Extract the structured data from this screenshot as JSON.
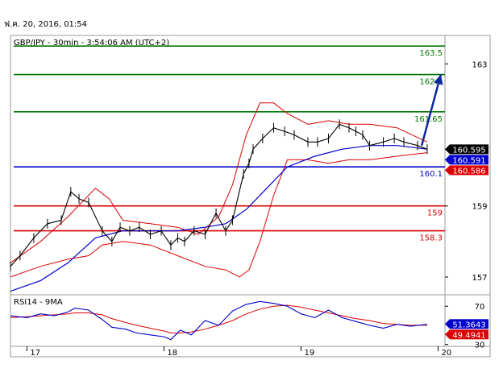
{
  "header": {
    "timestamp": "ฟ.ค. 20, 2016, 01:54"
  },
  "chart_data": {
    "type": "line",
    "title": "GBP/JPY - 30min - 3:54:06 AM (UTC+2)",
    "ylim": [
      156.5,
      163.8
    ],
    "yticks": [
      157,
      159,
      163
    ],
    "ytick_labels": [
      "157",
      "159",
      "163"
    ],
    "xtick_labels": [
      "17",
      "18",
      "19",
      "20"
    ],
    "xtick_positions": [
      0,
      1,
      2,
      3
    ],
    "x_range": [
      -0.12,
      3.05
    ],
    "colors": {
      "price": "#000000",
      "ma": "#0000cc",
      "bands": "#dd0000",
      "resistance": "#007700",
      "support_blue": "#0000cc",
      "support_red": "#dd0000",
      "arrow": "#0a2a9e",
      "rsi": "#0000cc",
      "rsi_ma": "#dd0000"
    },
    "levels": [
      {
        "value": 163.5,
        "label": "163.5",
        "color": "#007700"
      },
      {
        "value": 162.7,
        "label": "162.7",
        "color": "#007700"
      },
      {
        "value": 161.65,
        "label": "161.65",
        "color": "#007700"
      },
      {
        "value": 160.1,
        "label": "160.1",
        "color": "#0000cc"
      },
      {
        "value": 159,
        "label": "159",
        "color": "#dd0000"
      },
      {
        "value": 158.3,
        "label": "158.3",
        "color": "#dd0000"
      }
    ],
    "price_tags": [
      {
        "value": 160.595,
        "label": "160.595",
        "bg": "#000000"
      },
      {
        "value": 160.591,
        "label": "160.591",
        "bg": "#0000cc"
      },
      {
        "value": 160.586,
        "label": "160.586",
        "bg": "#dd0000"
      }
    ],
    "arrow": {
      "from": [
        2.88,
        160.7
      ],
      "to": [
        3.02,
        162.7
      ]
    },
    "series": [
      {
        "role": "price",
        "x": [
          -0.12,
          -0.05,
          0.05,
          0.15,
          0.25,
          0.32,
          0.38,
          0.45,
          0.55,
          0.62,
          0.68,
          0.75,
          0.82,
          0.9,
          0.98,
          1.05,
          1.1,
          1.15,
          1.22,
          1.3,
          1.38,
          1.45,
          1.5,
          1.58,
          1.62,
          1.65,
          1.72,
          1.8,
          1.88,
          1.95,
          2.05,
          2.12,
          2.2,
          2.28,
          2.35,
          2.4,
          2.45,
          2.5,
          2.6,
          2.68,
          2.75,
          2.85,
          2.92
        ],
        "y": [
          157.3,
          157.6,
          158.1,
          158.5,
          158.6,
          159.4,
          159.2,
          159.1,
          158.3,
          158.0,
          158.4,
          158.3,
          158.4,
          158.2,
          158.3,
          157.9,
          158.1,
          158.0,
          158.3,
          158.2,
          158.8,
          158.3,
          158.6,
          159.9,
          160.2,
          160.6,
          160.9,
          161.2,
          161.1,
          161.0,
          160.8,
          160.8,
          160.9,
          161.3,
          161.2,
          161.1,
          161.0,
          160.7,
          160.8,
          160.9,
          160.8,
          160.7,
          160.6
        ]
      },
      {
        "role": "ma",
        "x": [
          -0.12,
          0.1,
          0.3,
          0.5,
          0.7,
          0.9,
          1.1,
          1.3,
          1.45,
          1.6,
          1.75,
          1.9,
          2.1,
          2.3,
          2.5,
          2.7,
          2.92
        ],
        "y": [
          156.6,
          156.9,
          157.4,
          158.1,
          158.3,
          158.3,
          158.3,
          158.4,
          158.5,
          158.9,
          159.5,
          160.1,
          160.4,
          160.6,
          160.7,
          160.7,
          160.6
        ]
      },
      {
        "role": "band_upper",
        "x": [
          -0.12,
          0.1,
          0.3,
          0.5,
          0.6,
          0.7,
          0.9,
          1.1,
          1.25,
          1.4,
          1.5,
          1.6,
          1.7,
          1.8,
          1.9,
          2.05,
          2.2,
          2.35,
          2.5,
          2.7,
          2.92
        ],
        "y": [
          157.4,
          158.0,
          158.7,
          159.5,
          159.2,
          158.6,
          158.5,
          158.4,
          158.2,
          158.7,
          159.6,
          161.0,
          161.9,
          161.9,
          161.6,
          161.3,
          161.4,
          161.3,
          161.3,
          161.2,
          160.8
        ]
      },
      {
        "role": "band_lower",
        "x": [
          -0.12,
          0.1,
          0.3,
          0.45,
          0.55,
          0.7,
          0.9,
          1.1,
          1.3,
          1.45,
          1.55,
          1.62,
          1.7,
          1.8,
          1.9,
          2.05,
          2.2,
          2.35,
          2.5,
          2.7,
          2.92
        ],
        "y": [
          157.0,
          157.3,
          157.5,
          157.6,
          157.9,
          158.0,
          157.9,
          157.6,
          157.3,
          157.2,
          157.0,
          157.2,
          158.0,
          159.3,
          160.3,
          160.3,
          160.2,
          160.3,
          160.3,
          160.4,
          160.5
        ]
      }
    ],
    "rsi": {
      "title": "RSI14 - 9MA",
      "ylim": [
        28,
        82
      ],
      "ytick_labels": [
        "70",
        "30"
      ],
      "yticks": [
        70,
        30
      ],
      "tags": [
        {
          "value": 51.3643,
          "label": "51.3643",
          "bg": "#0000cc"
        },
        {
          "value": 49.4941,
          "label": "49.4941",
          "bg": "#dd0000"
        }
      ],
      "x": [
        -0.12,
        0.0,
        0.1,
        0.2,
        0.3,
        0.35,
        0.45,
        0.55,
        0.62,
        0.72,
        0.8,
        0.9,
        1.0,
        1.05,
        1.12,
        1.2,
        1.3,
        1.4,
        1.5,
        1.6,
        1.7,
        1.8,
        1.9,
        2.0,
        2.1,
        2.2,
        2.3,
        2.4,
        2.5,
        2.6,
        2.7,
        2.8,
        2.92
      ],
      "values": [
        60,
        58,
        62,
        60,
        64,
        68,
        66,
        56,
        48,
        46,
        42,
        40,
        38,
        35,
        45,
        40,
        55,
        50,
        65,
        72,
        75,
        73,
        70,
        62,
        58,
        66,
        58,
        54,
        50,
        47,
        51,
        49,
        51
      ],
      "ma": [
        58,
        59,
        60,
        61,
        62,
        63,
        63,
        61,
        57,
        53,
        50,
        47,
        44,
        42,
        42,
        43,
        46,
        50,
        55,
        62,
        67,
        70,
        71,
        69,
        66,
        63,
        60,
        57,
        55,
        52,
        51,
        50,
        50
      ]
    }
  }
}
